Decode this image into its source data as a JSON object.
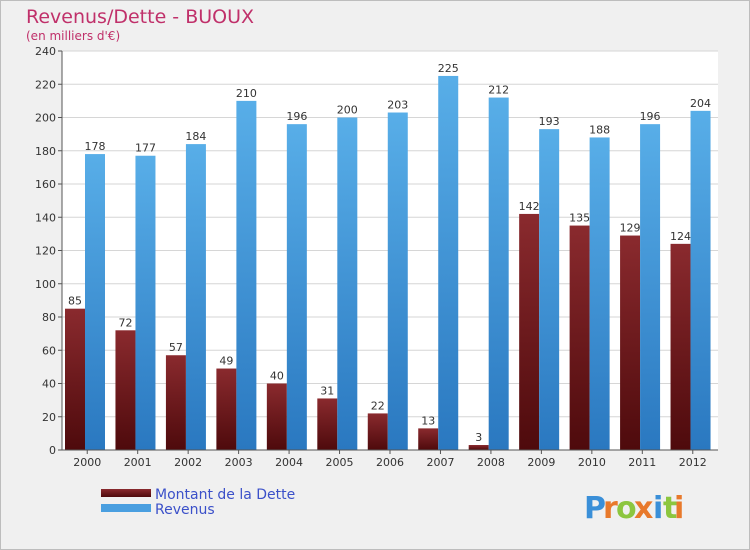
{
  "chart_data": {
    "type": "bar",
    "title": "Revenus/Dette - BUOUX",
    "subtitle": "(en milliers d'€)",
    "categories": [
      "2000",
      "2001",
      "2002",
      "2003",
      "2004",
      "2005",
      "2006",
      "2007",
      "2008",
      "2009",
      "2010",
      "2011",
      "2012"
    ],
    "series": [
      {
        "name": "Montant de la Dette",
        "color": "#7a1a1f",
        "values": [
          85,
          72,
          57,
          49,
          40,
          31,
          22,
          13,
          3,
          142,
          135,
          129,
          124
        ]
      },
      {
        "name": "Revenus",
        "color": "#4a9fe0",
        "values": [
          178,
          177,
          184,
          210,
          196,
          200,
          203,
          225,
          212,
          193,
          188,
          196,
          204
        ]
      }
    ],
    "ylim": [
      0,
      240
    ],
    "yticks": [
      0,
      20,
      40,
      60,
      80,
      100,
      120,
      140,
      160,
      180,
      200,
      220,
      240
    ],
    "grid": true,
    "legend": "bottom-left"
  },
  "brand": {
    "letters": [
      "P",
      "r",
      "o",
      "x",
      "i",
      "t",
      "i"
    ],
    "colors": [
      "#3a8fd8",
      "#e8792b",
      "#8cc63f",
      "#e8792b",
      "#3a8fd8",
      "#8cc63f",
      "#e8792b"
    ]
  }
}
